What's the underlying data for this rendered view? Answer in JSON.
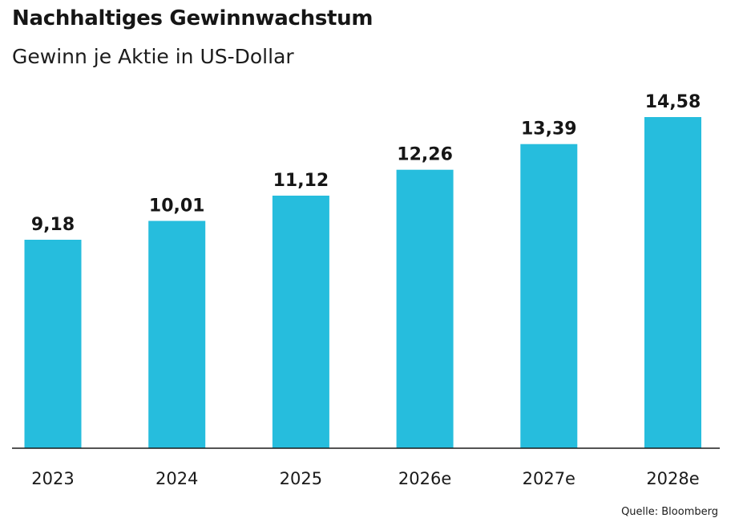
{
  "chart_data": {
    "type": "bar",
    "title": "Nachhaltiges Gewinnwachstum",
    "subtitle": "Gewinn je Aktie in US-Dollar",
    "categories": [
      "2023",
      "2024",
      "2025",
      "2026e",
      "2027e",
      "2028e"
    ],
    "values": [
      9.18,
      10.01,
      11.12,
      12.26,
      13.39,
      14.58
    ],
    "value_labels": [
      "9,18",
      "10,01",
      "11,12",
      "12,26",
      "13,39",
      "14,58"
    ],
    "xlabel": "",
    "ylabel": "",
    "ylim": [
      0,
      14.58
    ],
    "grid": false,
    "legend": "none",
    "source": "Quelle: Bloomberg"
  },
  "colors": {
    "bar": "#26BDDD",
    "baseline": "#1a1a1a"
  }
}
